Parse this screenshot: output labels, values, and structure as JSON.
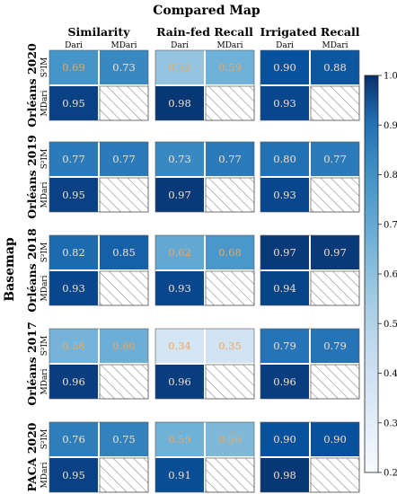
{
  "colors": {
    "low": "#f7fbff",
    "high": "#08306b",
    "light_text": "#f2a65a",
    "dark_text": "#f4a15c"
  },
  "chart_data": {
    "type": "heatmap",
    "title": "Compared Map",
    "ylabel": "Basemap",
    "metrics": [
      "Similarity",
      "Rain-fed Recall",
      "Irrigated Recall"
    ],
    "columns": [
      "Dari",
      "MDari"
    ],
    "row_labels": [
      "S²IM",
      "MDari"
    ],
    "basemaps": [
      "Orléans 2020",
      "Orléans 2019",
      "Orléans 2018",
      "Orléans 2017",
      "PACA 2020"
    ],
    "values": [
      [
        [
          0.69,
          0.73,
          0.95
        ],
        [
          0.52,
          0.59,
          0.98
        ],
        [
          0.9,
          0.88,
          0.93
        ]
      ],
      [
        [
          0.77,
          0.77,
          0.95
        ],
        [
          0.73,
          0.77,
          0.97
        ],
        [
          0.8,
          0.77,
          0.93
        ]
      ],
      [
        [
          0.82,
          0.85,
          0.93
        ],
        [
          0.62,
          0.68,
          0.93
        ],
        [
          0.97,
          0.97,
          0.94
        ]
      ],
      [
        [
          0.58,
          0.6,
          0.96
        ],
        [
          0.34,
          0.35,
          0.96
        ],
        [
          0.79,
          0.79,
          0.96
        ]
      ],
      [
        [
          0.76,
          0.75,
          0.95
        ],
        [
          0.59,
          0.56,
          0.91
        ],
        [
          0.9,
          0.9,
          0.98
        ]
      ]
    ],
    "colorbar": {
      "min": 0.2,
      "max": 1.0,
      "ticks": [
        "0.2",
        "0.3",
        "0.4",
        "0.5",
        "0.6",
        "0.7",
        "0.8",
        "0.9",
        "1.0"
      ]
    },
    "missing_cell": "MDari vs MDari (hatched)"
  }
}
